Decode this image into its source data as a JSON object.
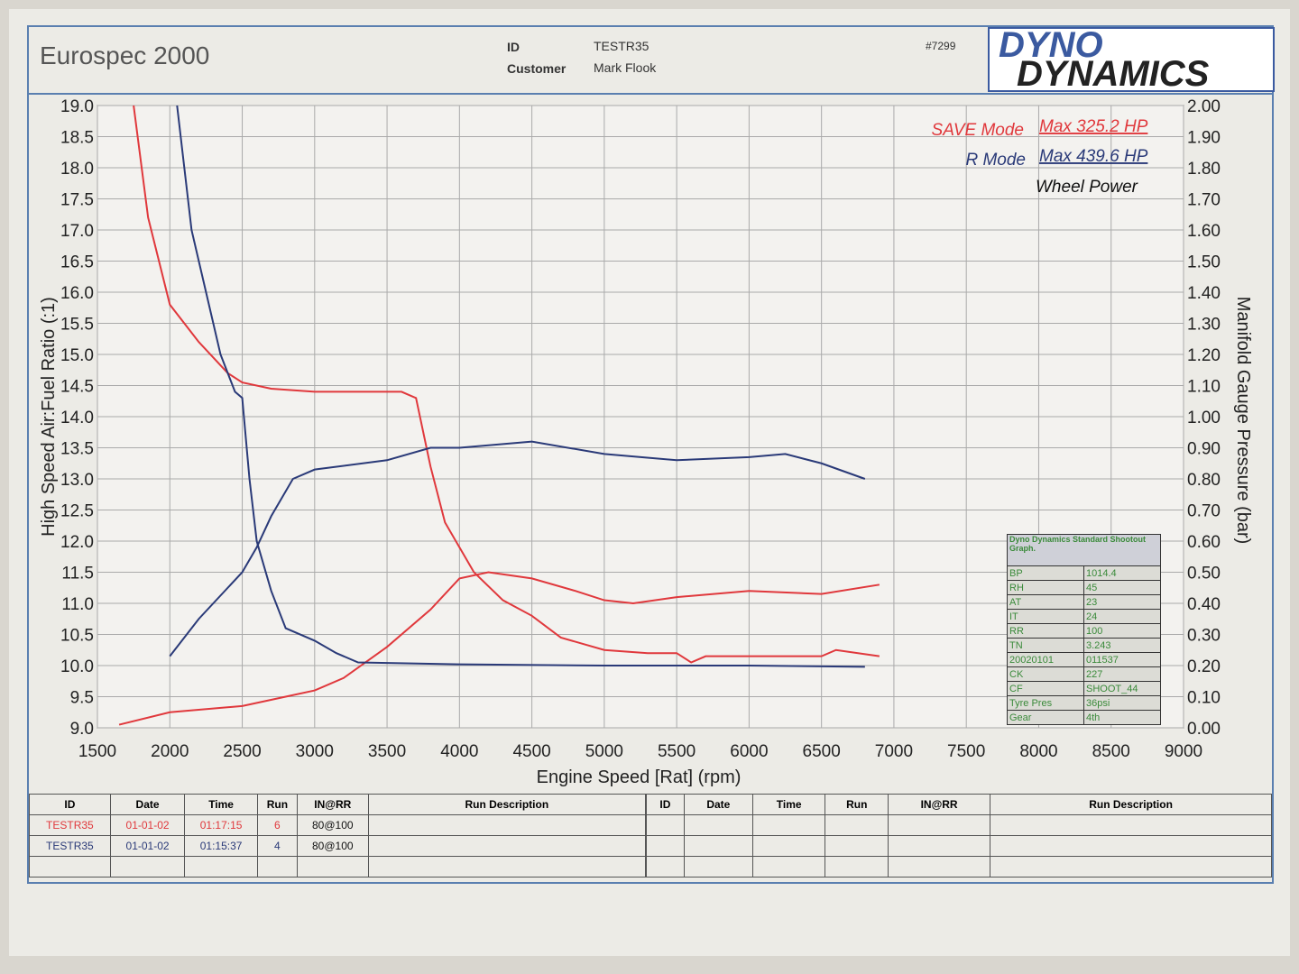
{
  "header": {
    "title": "Eurospec 2000",
    "id_label": "ID",
    "id_value": "TESTR35",
    "customer_label": "Customer",
    "customer_value": "Mark Flook",
    "sheet_no": "#7299",
    "logo_line1": "DYNO",
    "logo_line2": "DYNAMICS"
  },
  "legend": {
    "save_mode": "SAVE Mode",
    "save_max": "Max 325.2 HP",
    "r_mode": "R Mode",
    "r_max": "Max 439.6 HP",
    "wheel_power": "Wheel Power"
  },
  "info_box": {
    "title": "Dyno Dynamics Standard Shootout Graph.",
    "rows": [
      [
        "BP",
        "1014.4"
      ],
      [
        "RH",
        "45"
      ],
      [
        "AT",
        "23"
      ],
      [
        "IT",
        "24"
      ],
      [
        "RR",
        "100"
      ],
      [
        "TN",
        "3.243"
      ],
      [
        "20020101",
        "011537"
      ],
      [
        "CK",
        "227"
      ],
      [
        "CF",
        "SHOOT_44"
      ],
      [
        "Tyre Pres",
        "36psi"
      ],
      [
        "Gear",
        "4th"
      ]
    ]
  },
  "runs_table": {
    "headers": [
      "ID",
      "Date",
      "Time",
      "Run",
      "IN@RR",
      "Run Description"
    ],
    "rows": [
      [
        "TESTR35",
        "01-01-02",
        "01:17:15",
        "6",
        "80@100",
        ""
      ],
      [
        "TESTR35",
        "01-01-02",
        "01:15:37",
        "4",
        "80@100",
        ""
      ]
    ]
  },
  "chart_data": {
    "type": "line",
    "xlabel": "Engine Speed [Rat] (rpm)",
    "ylabel": "High Speed Air:Fuel Ratio (:1)",
    "y2label": "Manifold Gauge Pressure (bar)",
    "xlim": [
      1500,
      9000
    ],
    "ylim": [
      9.0,
      19.0
    ],
    "y2lim": [
      0.0,
      2.0
    ],
    "grid": true,
    "xticks": [
      "1500",
      "2000",
      "2500",
      "3000",
      "3500",
      "4000",
      "4500",
      "5000",
      "5500",
      "6000",
      "6500",
      "7000",
      "7500",
      "8000",
      "8500",
      "9000"
    ],
    "yticks": [
      "9.0",
      "9.5",
      "10.0",
      "10.5",
      "11.0",
      "11.5",
      "12.0",
      "12.5",
      "13.0",
      "13.5",
      "14.0",
      "14.5",
      "15.0",
      "15.5",
      "16.0",
      "16.5",
      "17.0",
      "17.5",
      "18.0",
      "18.5",
      "19.0"
    ],
    "y2ticks": [
      "0.00",
      "0.10",
      "0.20",
      "0.30",
      "0.40",
      "0.50",
      "0.60",
      "0.70",
      "0.80",
      "0.90",
      "1.00",
      "1.10",
      "1.20",
      "1.30",
      "1.40",
      "1.50",
      "1.60",
      "1.70",
      "1.80",
      "1.90",
      "2.00"
    ],
    "colors": {
      "save": "#e0383c",
      "r": "#2a3a78"
    },
    "series": [
      {
        "name": "SAVE Mode AFR",
        "axis": "left",
        "color": "#e0383c",
        "x": [
          1750,
          1850,
          2000,
          2200,
          2400,
          2500,
          2700,
          3000,
          3300,
          3600,
          3700,
          3800,
          3900,
          4000,
          4100,
          4300,
          4500,
          4700,
          5000,
          5300,
          5500,
          5600,
          5700,
          6000,
          6300,
          6500,
          6600,
          6900
        ],
        "y": [
          19.0,
          17.2,
          15.8,
          15.2,
          14.7,
          14.55,
          14.45,
          14.4,
          14.4,
          14.4,
          14.3,
          13.2,
          12.3,
          11.9,
          11.5,
          11.05,
          10.8,
          10.45,
          10.25,
          10.2,
          10.2,
          10.05,
          10.15,
          10.15,
          10.15,
          10.15,
          10.25,
          10.15
        ]
      },
      {
        "name": "SAVE Mode Boost",
        "axis": "right",
        "color": "#e0383c",
        "x": [
          1650,
          2000,
          2500,
          2800,
          3000,
          3200,
          3500,
          3800,
          4000,
          4200,
          4500,
          4800,
          5000,
          5200,
          5500,
          6000,
          6500,
          6900
        ],
        "y": [
          0.01,
          0.05,
          0.07,
          0.1,
          0.12,
          0.16,
          0.26,
          0.38,
          0.48,
          0.5,
          0.48,
          0.44,
          0.41,
          0.4,
          0.42,
          0.44,
          0.43,
          0.46
        ]
      },
      {
        "name": "R Mode AFR",
        "axis": "left",
        "color": "#2a3a78",
        "x": [
          2050,
          2150,
          2250,
          2350,
          2450,
          2500,
          2550,
          2600,
          2700,
          2800,
          3000,
          3150,
          3300,
          4000,
          5000,
          6000,
          6800
        ],
        "y": [
          19.0,
          17.0,
          16.0,
          15.0,
          14.4,
          14.3,
          13.0,
          12.0,
          11.2,
          10.6,
          10.4,
          10.2,
          10.05,
          10.02,
          10.0,
          10.0,
          9.98
        ]
      },
      {
        "name": "R Mode Boost",
        "axis": "right",
        "color": "#2a3a78",
        "x": [
          2000,
          2200,
          2400,
          2500,
          2600,
          2700,
          2850,
          3000,
          3500,
          3800,
          4000,
          4500,
          5000,
          5500,
          6000,
          6250,
          6500,
          6800
        ],
        "y": [
          0.23,
          0.35,
          0.45,
          0.5,
          0.58,
          0.68,
          0.8,
          0.83,
          0.86,
          0.9,
          0.9,
          0.92,
          0.88,
          0.86,
          0.87,
          0.88,
          0.85,
          0.8
        ]
      }
    ]
  }
}
